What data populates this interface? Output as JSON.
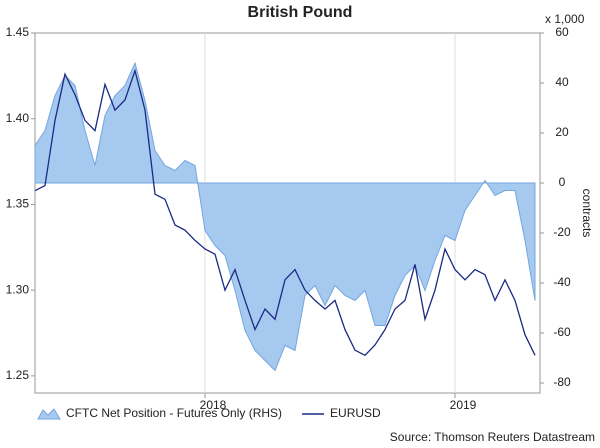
{
  "chart_data": {
    "type": "line",
    "title": "British Pound",
    "y2_unit": "x 1,000",
    "y2_label": "contracts",
    "source": "Source: Thomson Reuters Datastream",
    "x": [
      2017.32,
      2017.36,
      2017.4,
      2017.44,
      2017.48,
      2017.52,
      2017.56,
      2017.6,
      2017.64,
      2017.68,
      2017.72,
      2017.76,
      2017.8,
      2017.84,
      2017.88,
      2017.92,
      2017.96,
      2018,
      2018.04,
      2018.08,
      2018.12,
      2018.16,
      2018.2,
      2018.24,
      2018.28,
      2018.32,
      2018.36,
      2018.4,
      2018.44,
      2018.48,
      2018.52,
      2018.56,
      2018.6,
      2018.64,
      2018.68,
      2018.72,
      2018.76,
      2018.8,
      2018.84,
      2018.88,
      2018.92,
      2018.96,
      2019,
      2019.04,
      2019.08,
      2019.12,
      2019.16,
      2019.2,
      2019.24,
      2019.28,
      2019.32
    ],
    "series": [
      {
        "name": "CFTC Net Position - Futures Only (RHS)",
        "type": "area",
        "axis": "y2",
        "color": "#a6c9f0",
        "edge": "#74a6de",
        "values": [
          15,
          21,
          35,
          43,
          39,
          21,
          7,
          27,
          35,
          39,
          48,
          33,
          13,
          7,
          5,
          9,
          7,
          -19,
          -25,
          -29,
          -43,
          -59,
          -67,
          -71,
          -75,
          -65,
          -67,
          -45,
          -41,
          -49,
          -41,
          -45,
          -47,
          -43,
          -57,
          -57,
          -45,
          -37,
          -33,
          -43,
          -31,
          -21,
          -23,
          -11,
          -5,
          1,
          -5,
          -3,
          -3,
          -23,
          -47
        ]
      },
      {
        "name": "EURUSD",
        "type": "line",
        "color": "#1c2a84",
        "values": [
          1.358,
          1.361,
          1.399,
          1.426,
          1.414,
          1.399,
          1.393,
          1.42,
          1.405,
          1.411,
          1.428,
          1.405,
          1.356,
          1.353,
          1.338,
          1.335,
          1.329,
          1.324,
          1.321,
          1.3,
          1.312,
          1.294,
          1.277,
          1.289,
          1.283,
          1.306,
          1.312,
          1.3,
          1.294,
          1.289,
          1.294,
          1.277,
          1.265,
          1.262,
          1.268,
          1.277,
          1.289,
          1.294,
          1.315,
          1.283,
          1.3,
          1.324,
          1.312,
          1.306,
          1.312,
          1.309,
          1.294,
          1.306,
          1.294,
          1.274,
          1.262
        ]
      }
    ],
    "xlim": [
      2017.32,
      2019.34
    ],
    "xticks": [
      {
        "value": 2018,
        "label": "2018"
      },
      {
        "value": 2019,
        "label": "2019"
      }
    ],
    "ylim": [
      1.24,
      1.45
    ],
    "yticks": [
      1.25,
      {
        "value": 1.3,
        "label": "1.30"
      },
      1.35,
      {
        "value": 1.4,
        "label": "1.40"
      },
      1.45
    ],
    "y2lim": [
      -84,
      60
    ],
    "y2ticks": [
      -80,
      -60,
      -40,
      -20,
      0,
      20,
      40,
      60
    ],
    "grid": true,
    "legend": "bottom"
  }
}
